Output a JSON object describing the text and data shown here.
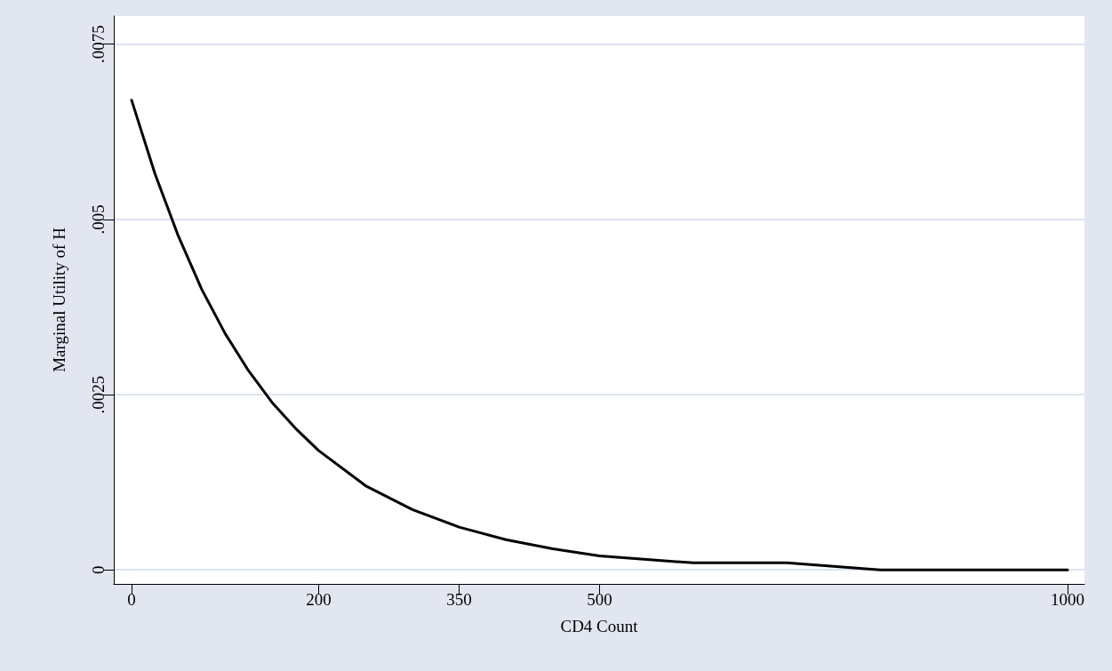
{
  "chart_data": {
    "type": "line",
    "xlabel": "CD4 Count",
    "ylabel": "Marginal Utility of H",
    "x": [
      0,
      25,
      50,
      75,
      100,
      125,
      150,
      175,
      200,
      250,
      300,
      350,
      400,
      450,
      500,
      600,
      700,
      800,
      900,
      1000
    ],
    "series": [
      {
        "color": "#000000",
        "values": [
          0.0067,
          0.00565,
          0.00476,
          0.004,
          0.00337,
          0.00284,
          0.00239,
          0.00202,
          0.0017,
          0.0012,
          0.00086,
          0.00061,
          0.00043,
          0.0003,
          0.0002,
          0.0001,
          0.0001,
          0,
          0,
          0
        ]
      }
    ],
    "xlim": [
      -19,
      1018
    ],
    "xticks": [
      0,
      200,
      350,
      500,
      1000
    ],
    "ylim": [
      -0.0002,
      0.0079
    ],
    "yticks": [
      {
        "value": 0,
        "label": "0"
      },
      {
        "value": 0.0025,
        "label": ".0025"
      },
      {
        "value": 0.005,
        "label": ".005"
      },
      {
        "value": 0.0075,
        "label": ".0075"
      }
    ],
    "grid": "y",
    "marker": "none",
    "line_style": "solid"
  }
}
